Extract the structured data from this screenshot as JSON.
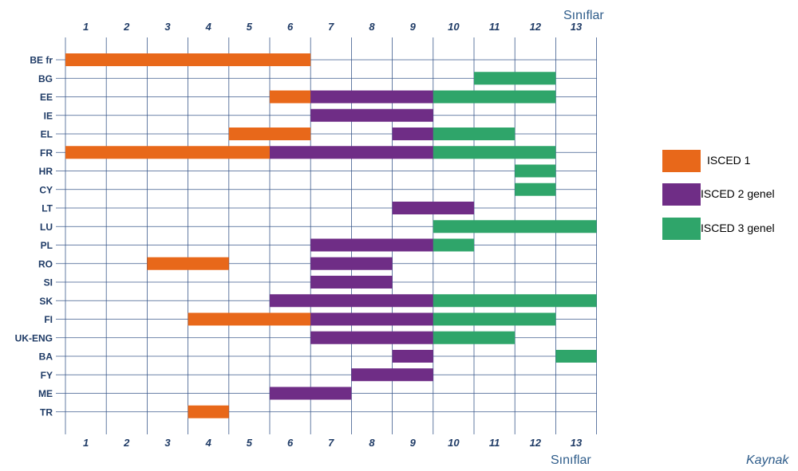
{
  "chart_data": {
    "type": "bar",
    "orientation": "horizontal-range",
    "x_axis_title": "Sınıflar",
    "grades": [
      "1",
      "2",
      "3",
      "4",
      "5",
      "6",
      "7",
      "8",
      "9",
      "10",
      "11",
      "12",
      "13"
    ],
    "countries": [
      "BE fr",
      "BG",
      "EE",
      "IE",
      "EL",
      "FR",
      "HR",
      "CY",
      "LT",
      "LU",
      "PL",
      "RO",
      "SI",
      "SK",
      "FI",
      "UK-ENG",
      "BA",
      "FY",
      "ME",
      "TR"
    ],
    "series": [
      {
        "name": "ISCED 1",
        "color": "#e8681a"
      },
      {
        "name": "ISCED 2 genel",
        "color": "#6f2d86"
      },
      {
        "name": "ISCED 3 genel",
        "color": "#2fa56a"
      }
    ],
    "bars": [
      {
        "country": "BE fr",
        "level": 0,
        "from": 1,
        "to": 6
      },
      {
        "country": "BG",
        "level": 2,
        "from": 11,
        "to": 12
      },
      {
        "country": "EE",
        "level": 0,
        "from": 6,
        "to": 6
      },
      {
        "country": "EE",
        "level": 1,
        "from": 7,
        "to": 9
      },
      {
        "country": "EE",
        "level": 2,
        "from": 10,
        "to": 12
      },
      {
        "country": "IE",
        "level": 1,
        "from": 7,
        "to": 9
      },
      {
        "country": "EL",
        "level": 0,
        "from": 5,
        "to": 6
      },
      {
        "country": "EL",
        "level": 1,
        "from": 9,
        "to": 9
      },
      {
        "country": "EL",
        "level": 2,
        "from": 10,
        "to": 11
      },
      {
        "country": "FR",
        "level": 0,
        "from": 1,
        "to": 5
      },
      {
        "country": "FR",
        "level": 1,
        "from": 6,
        "to": 9
      },
      {
        "country": "FR",
        "level": 2,
        "from": 10,
        "to": 12
      },
      {
        "country": "HR",
        "level": 2,
        "from": 12,
        "to": 12
      },
      {
        "country": "CY",
        "level": 2,
        "from": 12,
        "to": 12
      },
      {
        "country": "LT",
        "level": 1,
        "from": 9,
        "to": 10
      },
      {
        "country": "LU",
        "level": 2,
        "from": 10,
        "to": 13
      },
      {
        "country": "PL",
        "level": 1,
        "from": 7,
        "to": 9
      },
      {
        "country": "PL",
        "level": 2,
        "from": 10,
        "to": 10
      },
      {
        "country": "RO",
        "level": 0,
        "from": 3,
        "to": 4
      },
      {
        "country": "RO",
        "level": 1,
        "from": 7,
        "to": 8
      },
      {
        "country": "SI",
        "level": 1,
        "from": 7,
        "to": 8
      },
      {
        "country": "SK",
        "level": 1,
        "from": 6,
        "to": 9
      },
      {
        "country": "SK",
        "level": 2,
        "from": 10,
        "to": 13
      },
      {
        "country": "FI",
        "level": 0,
        "from": 4,
        "to": 6
      },
      {
        "country": "FI",
        "level": 1,
        "from": 7,
        "to": 9
      },
      {
        "country": "FI",
        "level": 2,
        "from": 10,
        "to": 12
      },
      {
        "country": "UK-ENG",
        "level": 1,
        "from": 7,
        "to": 9
      },
      {
        "country": "UK-ENG",
        "level": 2,
        "from": 10,
        "to": 11
      },
      {
        "country": "BA",
        "level": 1,
        "from": 9,
        "to": 9
      },
      {
        "country": "BA",
        "level": 2,
        "from": 13,
        "to": 13
      },
      {
        "country": "FY",
        "level": 1,
        "from": 8,
        "to": 9
      },
      {
        "country": "ME",
        "level": 1,
        "from": 6,
        "to": 7
      },
      {
        "country": "TR",
        "level": 0,
        "from": 4,
        "to": 4
      }
    ],
    "grid": true,
    "legend_position": "right"
  },
  "source_label": "Kaynak"
}
